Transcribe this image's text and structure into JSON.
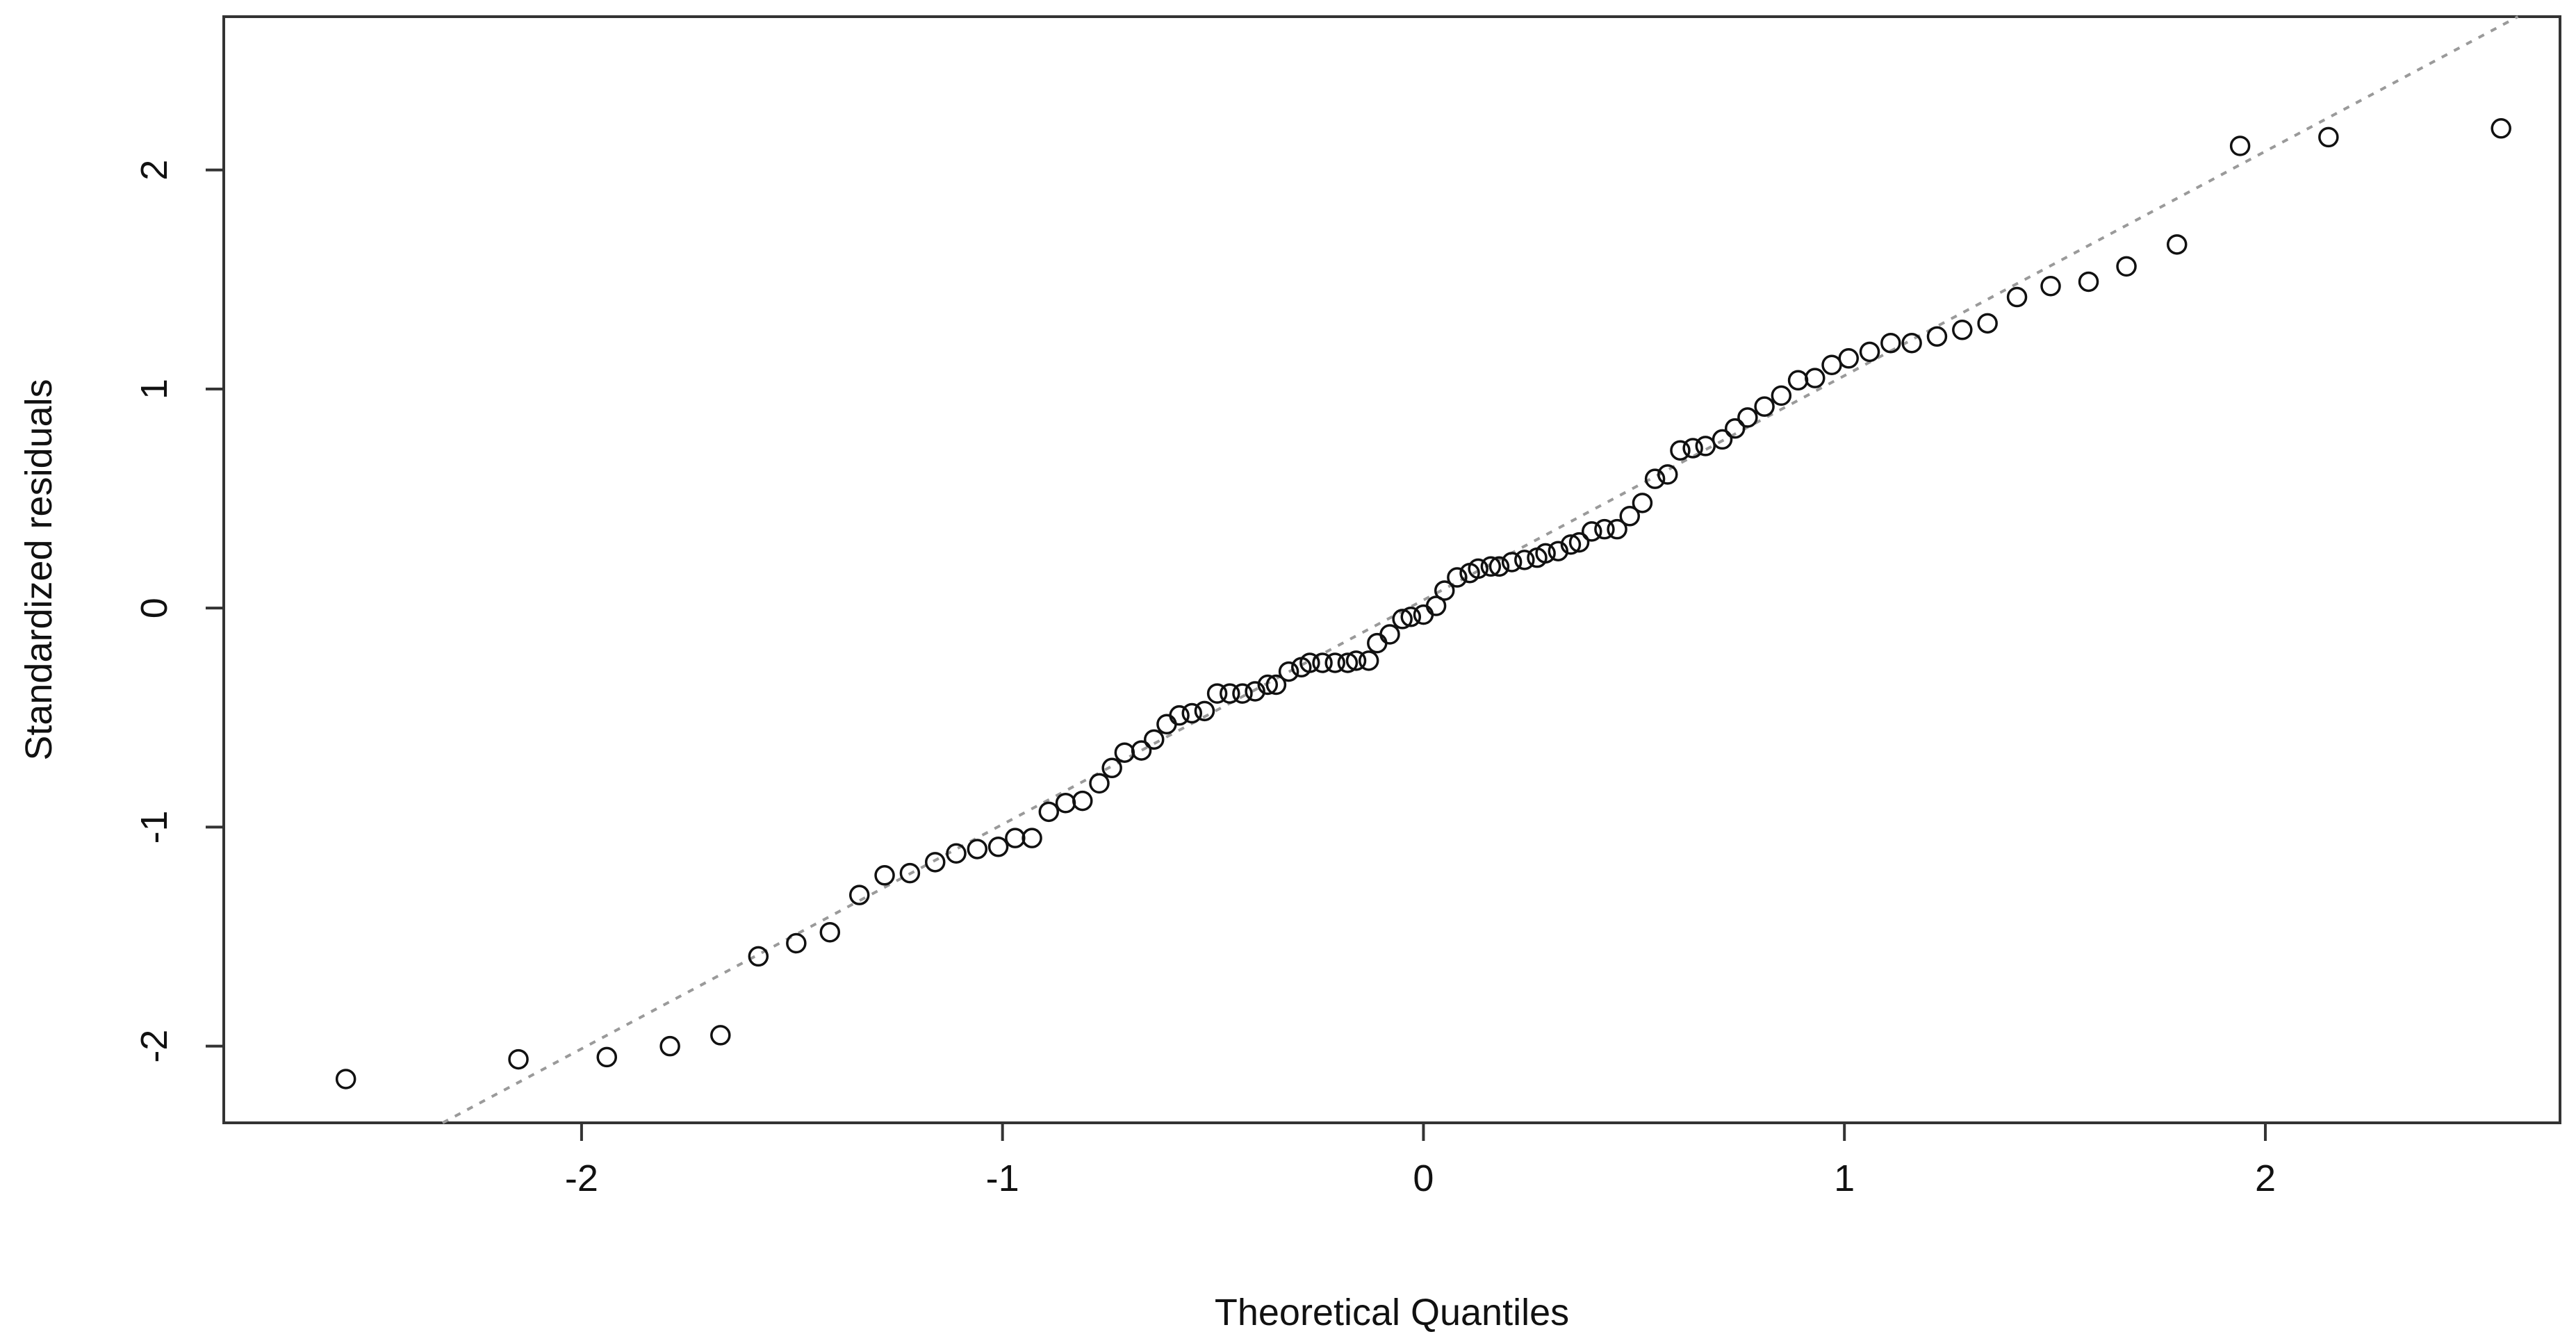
{
  "chart_data": {
    "type": "scatter",
    "title": "",
    "xlabel": "Theoretical Quantiles",
    "ylabel": "Standardized residuals",
    "xlim": [
      -2.85,
      2.7
    ],
    "ylim": [
      -2.35,
      2.7
    ],
    "x_ticks": [
      -2,
      -1,
      0,
      1,
      2
    ],
    "y_ticks": [
      -2,
      -1,
      0,
      1,
      2
    ],
    "x_tick_labels": [
      "-2",
      "-1",
      "0",
      "1",
      "2"
    ],
    "y_tick_labels": [
      "-2",
      "-1",
      "0",
      "1",
      "2"
    ],
    "grid": false,
    "reference_line": {
      "x": [
        -2.33,
        2.6
      ],
      "y": [
        -2.35,
        2.7
      ]
    },
    "x": [
      -2.56,
      -2.15,
      -1.94,
      -1.79,
      -1.67,
      -1.58,
      -1.49,
      -1.41,
      -1.34,
      -1.28,
      -1.22,
      -1.16,
      -1.11,
      -1.06,
      -1.01,
      -0.97,
      -0.93,
      -0.89,
      -0.85,
      -0.81,
      -0.77,
      -0.74,
      -0.71,
      -0.67,
      -0.64,
      -0.61,
      -0.58,
      -0.55,
      -0.52,
      -0.49,
      -0.46,
      -0.43,
      -0.4,
      -0.37,
      -0.35,
      -0.32,
      -0.29,
      -0.27,
      -0.24,
      -0.21,
      -0.18,
      -0.16,
      -0.13,
      -0.11,
      -0.08,
      -0.05,
      -0.03,
      0.0,
      0.03,
      0.05,
      0.08,
      0.11,
      0.13,
      0.16,
      0.18,
      0.21,
      0.24,
      0.27,
      0.29,
      0.32,
      0.35,
      0.37,
      0.4,
      0.43,
      0.46,
      0.49,
      0.52,
      0.55,
      0.58,
      0.61,
      0.64,
      0.67,
      0.71,
      0.74,
      0.77,
      0.81,
      0.85,
      0.89,
      0.93,
      0.97,
      1.01,
      1.06,
      1.11,
      1.16,
      1.22,
      1.28,
      1.34,
      1.41,
      1.49,
      1.58,
      1.67,
      1.79,
      1.94,
      2.15,
      2.56
    ],
    "y": [
      -2.15,
      -2.06,
      -2.05,
      -2.0,
      -1.95,
      -1.59,
      -1.53,
      -1.48,
      -1.31,
      -1.22,
      -1.21,
      -1.16,
      -1.12,
      -1.1,
      -1.09,
      -1.05,
      -1.05,
      -0.93,
      -0.89,
      -0.88,
      -0.8,
      -0.73,
      -0.66,
      -0.65,
      -0.6,
      -0.53,
      -0.49,
      -0.48,
      -0.47,
      -0.39,
      -0.39,
      -0.39,
      -0.38,
      -0.35,
      -0.35,
      -0.29,
      -0.27,
      -0.25,
      -0.25,
      -0.25,
      -0.25,
      -0.24,
      -0.24,
      -0.16,
      -0.12,
      -0.05,
      -0.04,
      -0.03,
      0.01,
      0.08,
      0.14,
      0.16,
      0.18,
      0.19,
      0.19,
      0.21,
      0.22,
      0.23,
      0.25,
      0.26,
      0.29,
      0.3,
      0.35,
      0.36,
      0.36,
      0.42,
      0.48,
      0.59,
      0.61,
      0.72,
      0.73,
      0.74,
      0.77,
      0.82,
      0.87,
      0.92,
      0.97,
      1.04,
      1.05,
      1.11,
      1.14,
      1.17,
      1.21,
      1.21,
      1.24,
      1.27,
      1.3,
      1.42,
      1.47,
      1.49,
      1.56,
      1.66,
      2.11,
      2.15,
      2.19
    ]
  }
}
